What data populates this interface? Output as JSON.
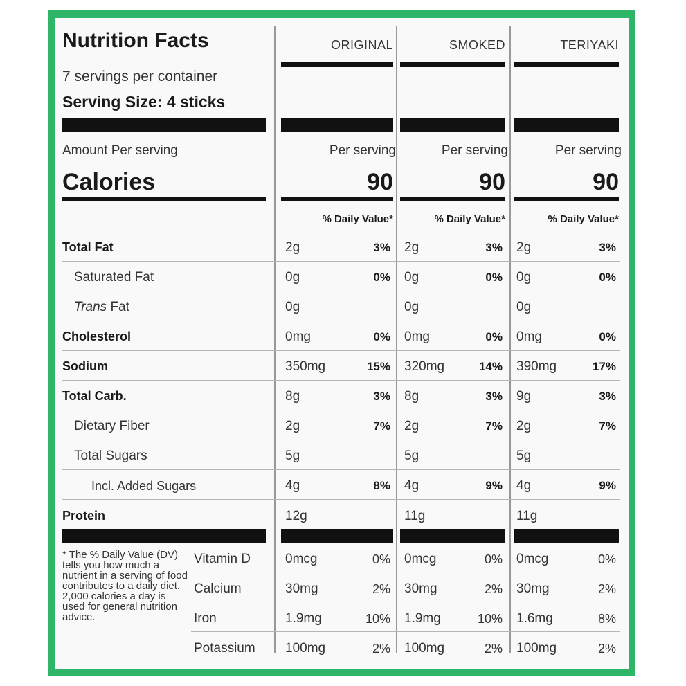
{
  "title": "Nutrition Facts",
  "servings": "7 servings per container",
  "serving_size": "Serving Size: 4 sticks",
  "amount_per": "Amount Per serving",
  "calories_label": "Calories",
  "per_serving": "Per serving",
  "dv_header": "% Daily Value*",
  "columns": [
    {
      "name": "ORIGINAL",
      "calories": "90"
    },
    {
      "name": "SMOKED",
      "calories": "90"
    },
    {
      "name": "TERIYAKI",
      "calories": "90"
    }
  ],
  "nutrients": [
    {
      "label": "Total Fat",
      "style": "bold",
      "values": [
        [
          "2g",
          "3%"
        ],
        [
          "2g",
          "3%"
        ],
        [
          "2g",
          "3%"
        ]
      ]
    },
    {
      "label": "Saturated Fat",
      "style": "indent",
      "values": [
        [
          "0g",
          "0%"
        ],
        [
          "0g",
          "0%"
        ],
        [
          "0g",
          "0%"
        ]
      ]
    },
    {
      "label": "Trans",
      "label2": " Fat",
      "style": "trans",
      "values": [
        [
          "0g",
          ""
        ],
        [
          "0g",
          ""
        ],
        [
          "0g",
          ""
        ]
      ]
    },
    {
      "label": "Cholesterol",
      "style": "bold",
      "values": [
        [
          "0mg",
          "0%"
        ],
        [
          "0mg",
          "0%"
        ],
        [
          "0mg",
          "0%"
        ]
      ]
    },
    {
      "label": "Sodium",
      "style": "bold",
      "values": [
        [
          "350mg",
          "15%"
        ],
        [
          "320mg",
          "14%"
        ],
        [
          "390mg",
          "17%"
        ]
      ]
    },
    {
      "label": "Total Carb.",
      "style": "bold",
      "values": [
        [
          "8g",
          "3%"
        ],
        [
          "8g",
          "3%"
        ],
        [
          "9g",
          "3%"
        ]
      ]
    },
    {
      "label": "Dietary Fiber",
      "style": "indent",
      "values": [
        [
          "2g",
          "7%"
        ],
        [
          "2g",
          "7%"
        ],
        [
          "2g",
          "7%"
        ]
      ]
    },
    {
      "label": "Total Sugars",
      "style": "indent",
      "values": [
        [
          "5g",
          ""
        ],
        [
          "5g",
          ""
        ],
        [
          "5g",
          ""
        ]
      ]
    },
    {
      "label": "Incl. Added Sugars",
      "style": "indent2",
      "values": [
        [
          "4g",
          "8%"
        ],
        [
          "4g",
          "9%"
        ],
        [
          "4g",
          "9%"
        ]
      ]
    },
    {
      "label": "Protein",
      "style": "bold",
      "values": [
        [
          "12g",
          ""
        ],
        [
          "11g",
          ""
        ],
        [
          "11g",
          ""
        ]
      ]
    }
  ],
  "vitamins": [
    {
      "label": "Vitamin D",
      "values": [
        [
          "0mcg",
          "0%"
        ],
        [
          "0mcg",
          "0%"
        ],
        [
          "0mcg",
          "0%"
        ]
      ]
    },
    {
      "label": "Calcium",
      "values": [
        [
          "30mg",
          "2%"
        ],
        [
          "30mg",
          "2%"
        ],
        [
          "30mg",
          "2%"
        ]
      ]
    },
    {
      "label": "Iron",
      "values": [
        [
          "1.9mg",
          "10%"
        ],
        [
          "1.9mg",
          "10%"
        ],
        [
          "1.6mg",
          "8%"
        ]
      ]
    },
    {
      "label": "Potassium",
      "values": [
        [
          "100mg",
          "2%"
        ],
        [
          "100mg",
          "2%"
        ],
        [
          "100mg",
          "2%"
        ]
      ]
    }
  ],
  "footnote": "* The % Daily Value (DV) tells you how much a nutrient in a serving of food contributes to a daily diet. 2,000 calories a day is used for general nutrition advice."
}
